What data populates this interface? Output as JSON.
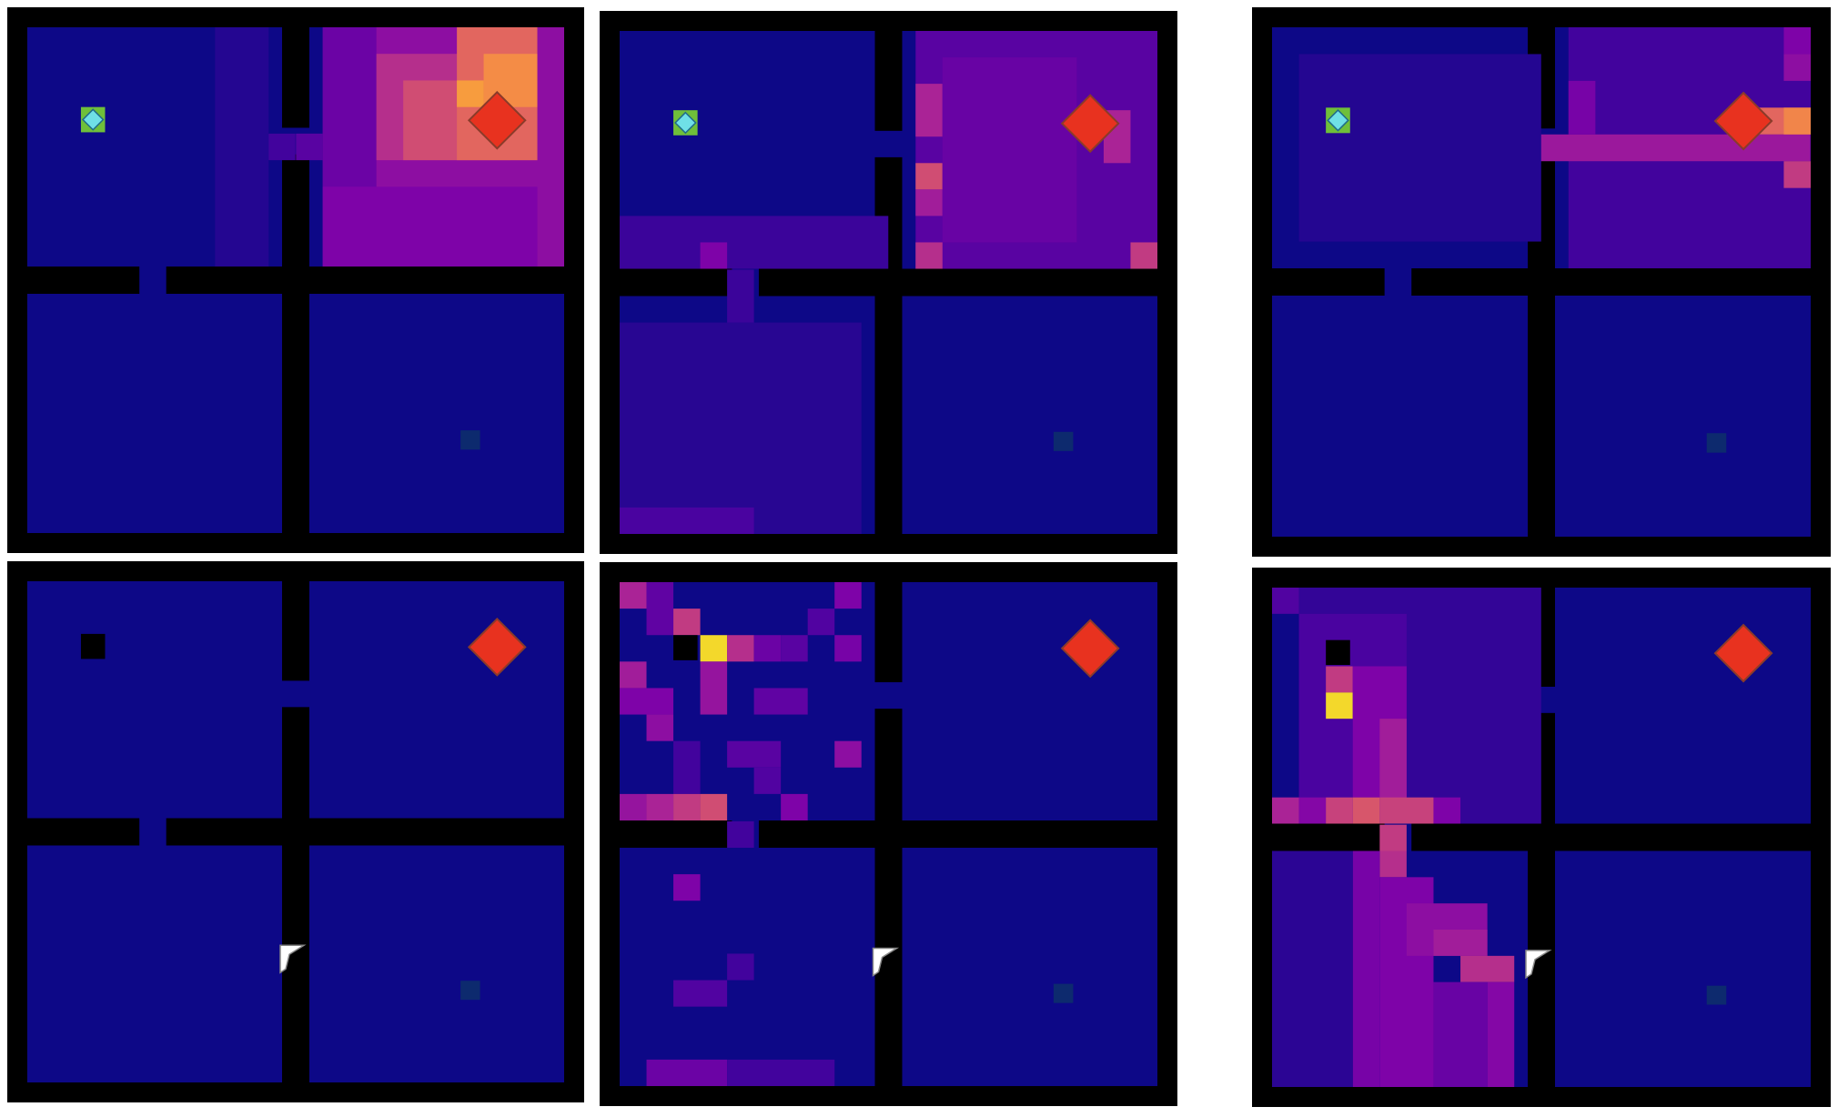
{
  "colors": {
    "background": "#0d0887",
    "wall": "#000000",
    "goal": "#e8321f",
    "goal_stroke": "#8a3b2a",
    "agent_fill": "#6fe0e6",
    "agent_border": "#6fbf3a",
    "flag": "#ffffff",
    "hidden_agent": "#000000",
    "subgoal": "#0d2a6e"
  },
  "icons": {
    "goal": "diamond-goal-icon",
    "agent": "agent-diamond-icon",
    "flag": "flag-icon",
    "subgoal": "subgoal-square-icon"
  },
  "grid": {
    "columns": 20,
    "rows": 20,
    "room_doors": "four-rooms"
  },
  "panels": [
    {
      "id": "top-left",
      "agent": [
        2,
        3
      ],
      "goal": [
        17,
        3
      ],
      "subgoal": [
        16,
        15
      ],
      "flag": null,
      "heat": [
        {
          "x": 11,
          "y": 0,
          "w": 9,
          "h": 9,
          "v": 0.35
        },
        {
          "x": 11,
          "y": 0,
          "w": 2,
          "h": 9,
          "v": 0.25
        },
        {
          "x": 13,
          "y": 1,
          "w": 5,
          "h": 4,
          "v": 0.5
        },
        {
          "x": 14,
          "y": 2,
          "w": 5,
          "h": 3,
          "v": 0.62
        },
        {
          "x": 16,
          "y": 0,
          "w": 3,
          "h": 5,
          "v": 0.7
        },
        {
          "x": 17,
          "y": 1,
          "w": 2,
          "h": 2,
          "v": 0.82
        },
        {
          "x": 16,
          "y": 2,
          "w": 1,
          "h": 1,
          "v": 0.86
        },
        {
          "x": 11,
          "y": 6,
          "w": 8,
          "h": 3,
          "v": 0.3
        },
        {
          "x": 10,
          "y": 4,
          "w": 1,
          "h": 1,
          "v": 0.2
        },
        {
          "x": 7,
          "y": 0,
          "w": 2,
          "h": 9,
          "v": 0.06
        },
        {
          "x": 9,
          "y": 4,
          "w": 1,
          "h": 1,
          "v": 0.14
        }
      ]
    },
    {
      "id": "top-middle",
      "agent": [
        2,
        3
      ],
      "goal": [
        17,
        3
      ],
      "subgoal": [
        16,
        15
      ],
      "flag": null,
      "heat": [
        {
          "x": 11,
          "y": 0,
          "w": 9,
          "h": 9,
          "v": 0.2
        },
        {
          "x": 11,
          "y": 2,
          "w": 1,
          "h": 2,
          "v": 0.45
        },
        {
          "x": 11,
          "y": 5,
          "w": 1,
          "h": 1,
          "v": 0.62
        },
        {
          "x": 11,
          "y": 6,
          "w": 1,
          "h": 1,
          "v": 0.42
        },
        {
          "x": 11,
          "y": 8,
          "w": 1,
          "h": 1,
          "v": 0.5
        },
        {
          "x": 18,
          "y": 3,
          "w": 1,
          "h": 2,
          "v": 0.45
        },
        {
          "x": 19,
          "y": 8,
          "w": 1,
          "h": 1,
          "v": 0.55
        },
        {
          "x": 12,
          "y": 1,
          "w": 5,
          "h": 7,
          "v": 0.24
        },
        {
          "x": 0,
          "y": 7,
          "w": 10,
          "h": 2,
          "v": 0.12
        },
        {
          "x": 3,
          "y": 8,
          "w": 1,
          "h": 1,
          "v": 0.3
        },
        {
          "x": 4,
          "y": 9,
          "w": 1,
          "h": 5,
          "v": 0.12
        },
        {
          "x": 0,
          "y": 11,
          "w": 9,
          "h": 8,
          "v": 0.07
        },
        {
          "x": 0,
          "y": 18,
          "w": 5,
          "h": 1,
          "v": 0.16
        }
      ]
    },
    {
      "id": "top-right",
      "agent": [
        2,
        3
      ],
      "goal": [
        17,
        3
      ],
      "subgoal": [
        16,
        15
      ],
      "flag": null,
      "heat": [
        {
          "x": 11,
          "y": 0,
          "w": 9,
          "h": 9,
          "v": 0.14
        },
        {
          "x": 2,
          "y": 3,
          "w": 4,
          "h": 1,
          "v": 0.38
        },
        {
          "x": 4,
          "y": 4,
          "w": 16,
          "h": 1,
          "v": 0.4
        },
        {
          "x": 8,
          "y": 4,
          "w": 1,
          "h": 1,
          "v": 0.62
        },
        {
          "x": 18,
          "y": 3,
          "w": 2,
          "h": 1,
          "v": 0.7
        },
        {
          "x": 19,
          "y": 3,
          "w": 1,
          "h": 1,
          "v": 0.8
        },
        {
          "x": 19,
          "y": 5,
          "w": 1,
          "h": 1,
          "v": 0.55
        },
        {
          "x": 19,
          "y": 1,
          "w": 1,
          "h": 1,
          "v": 0.35
        },
        {
          "x": 19,
          "y": 0,
          "w": 1,
          "h": 1,
          "v": 0.3
        },
        {
          "x": 11,
          "y": 2,
          "w": 1,
          "h": 2,
          "v": 0.28
        },
        {
          "x": 1,
          "y": 1,
          "w": 9,
          "h": 7,
          "v": 0.06
        }
      ]
    },
    {
      "id": "bottom-left",
      "agent": null,
      "hidden_agent": [
        2,
        2
      ],
      "goal": [
        17,
        2
      ],
      "subgoal": [
        16,
        15
      ],
      "flag": [
        9,
        14
      ],
      "heat": []
    },
    {
      "id": "bottom-middle",
      "agent": null,
      "hidden_agent": [
        2,
        2
      ],
      "goal": [
        17,
        2
      ],
      "subgoal": [
        16,
        15
      ],
      "flag": [
        9,
        14
      ],
      "heat": [
        {
          "x": 0,
          "y": 0,
          "w": 1,
          "h": 1,
          "v": 0.45
        },
        {
          "x": 1,
          "y": 0,
          "w": 1,
          "h": 2,
          "v": 0.22
        },
        {
          "x": 2,
          "y": 1,
          "w": 1,
          "h": 1,
          "v": 0.55
        },
        {
          "x": 3,
          "y": 2,
          "w": 1,
          "h": 1,
          "v": 0.95
        },
        {
          "x": 4,
          "y": 2,
          "w": 1,
          "h": 1,
          "v": 0.5
        },
        {
          "x": 3,
          "y": 3,
          "w": 1,
          "h": 2,
          "v": 0.38
        },
        {
          "x": 0,
          "y": 3,
          "w": 1,
          "h": 1,
          "v": 0.42
        },
        {
          "x": 0,
          "y": 4,
          "w": 2,
          "h": 1,
          "v": 0.3
        },
        {
          "x": 1,
          "y": 5,
          "w": 1,
          "h": 1,
          "v": 0.35
        },
        {
          "x": 5,
          "y": 2,
          "w": 1,
          "h": 1,
          "v": 0.25
        },
        {
          "x": 6,
          "y": 2,
          "w": 1,
          "h": 1,
          "v": 0.2
        },
        {
          "x": 8,
          "y": 2,
          "w": 1,
          "h": 1,
          "v": 0.28
        },
        {
          "x": 7,
          "y": 1,
          "w": 1,
          "h": 1,
          "v": 0.18
        },
        {
          "x": 8,
          "y": 0,
          "w": 1,
          "h": 1,
          "v": 0.3
        },
        {
          "x": 5,
          "y": 4,
          "w": 2,
          "h": 1,
          "v": 0.22
        },
        {
          "x": 8,
          "y": 6,
          "w": 1,
          "h": 1,
          "v": 0.35
        },
        {
          "x": 4,
          "y": 6,
          "w": 2,
          "h": 1,
          "v": 0.2
        },
        {
          "x": 2,
          "y": 6,
          "w": 1,
          "h": 2,
          "v": 0.14
        },
        {
          "x": 0,
          "y": 8,
          "w": 1,
          "h": 1,
          "v": 0.38
        },
        {
          "x": 1,
          "y": 8,
          "w": 1,
          "h": 1,
          "v": 0.45
        },
        {
          "x": 2,
          "y": 8,
          "w": 1,
          "h": 1,
          "v": 0.55
        },
        {
          "x": 3,
          "y": 8,
          "w": 1,
          "h": 1,
          "v": 0.62
        },
        {
          "x": 6,
          "y": 8,
          "w": 1,
          "h": 1,
          "v": 0.3
        },
        {
          "x": 5,
          "y": 7,
          "w": 1,
          "h": 1,
          "v": 0.18
        },
        {
          "x": 4,
          "y": 9,
          "w": 1,
          "h": 1,
          "v": 0.14
        },
        {
          "x": 2,
          "y": 11,
          "w": 1,
          "h": 1,
          "v": 0.3
        },
        {
          "x": 4,
          "y": 14,
          "w": 1,
          "h": 1,
          "v": 0.14
        },
        {
          "x": 2,
          "y": 15,
          "w": 2,
          "h": 1,
          "v": 0.18
        },
        {
          "x": 1,
          "y": 18,
          "w": 3,
          "h": 1,
          "v": 0.25
        },
        {
          "x": 4,
          "y": 18,
          "w": 4,
          "h": 1,
          "v": 0.14
        }
      ]
    },
    {
      "id": "bottom-right",
      "agent": null,
      "hidden_agent": [
        2,
        2
      ],
      "goal": [
        17,
        2
      ],
      "subgoal": [
        16,
        15
      ],
      "flag": [
        9,
        14
      ],
      "heat": [
        {
          "x": 0,
          "y": 0,
          "w": 1,
          "h": 1,
          "v": 0.18
        },
        {
          "x": 1,
          "y": 0,
          "w": 9,
          "h": 9,
          "v": 0.1
        },
        {
          "x": 1,
          "y": 1,
          "w": 4,
          "h": 8,
          "v": 0.16
        },
        {
          "x": 2,
          "y": 3,
          "w": 1,
          "h": 1,
          "v": 0.55
        },
        {
          "x": 2,
          "y": 4,
          "w": 1,
          "h": 1,
          "v": 0.95
        },
        {
          "x": 3,
          "y": 3,
          "w": 2,
          "h": 5,
          "v": 0.3
        },
        {
          "x": 4,
          "y": 5,
          "w": 1,
          "h": 4,
          "v": 0.42
        },
        {
          "x": 0,
          "y": 8,
          "w": 1,
          "h": 1,
          "v": 0.45
        },
        {
          "x": 1,
          "y": 8,
          "w": 1,
          "h": 1,
          "v": 0.32
        },
        {
          "x": 2,
          "y": 8,
          "w": 1,
          "h": 1,
          "v": 0.58
        },
        {
          "x": 3,
          "y": 8,
          "w": 1,
          "h": 1,
          "v": 0.65
        },
        {
          "x": 4,
          "y": 8,
          "w": 2,
          "h": 1,
          "v": 0.58
        },
        {
          "x": 6,
          "y": 8,
          "w": 1,
          "h": 1,
          "v": 0.3
        },
        {
          "x": 4,
          "y": 9,
          "w": 1,
          "h": 1,
          "v": 0.55
        },
        {
          "x": 4,
          "y": 10,
          "w": 1,
          "h": 1,
          "v": 0.5
        },
        {
          "x": 3,
          "y": 10,
          "w": 1,
          "h": 9,
          "v": 0.28
        },
        {
          "x": 4,
          "y": 11,
          "w": 2,
          "h": 8,
          "v": 0.3
        },
        {
          "x": 5,
          "y": 12,
          "w": 3,
          "h": 2,
          "v": 0.35
        },
        {
          "x": 6,
          "y": 13,
          "w": 2,
          "h": 1,
          "v": 0.42
        },
        {
          "x": 7,
          "y": 14,
          "w": 2,
          "h": 1,
          "v": 0.5
        },
        {
          "x": 8,
          "y": 15,
          "w": 1,
          "h": 4,
          "v": 0.32
        },
        {
          "x": 6,
          "y": 15,
          "w": 2,
          "h": 4,
          "v": 0.24
        },
        {
          "x": 0,
          "y": 10,
          "w": 3,
          "h": 9,
          "v": 0.08
        }
      ]
    }
  ]
}
